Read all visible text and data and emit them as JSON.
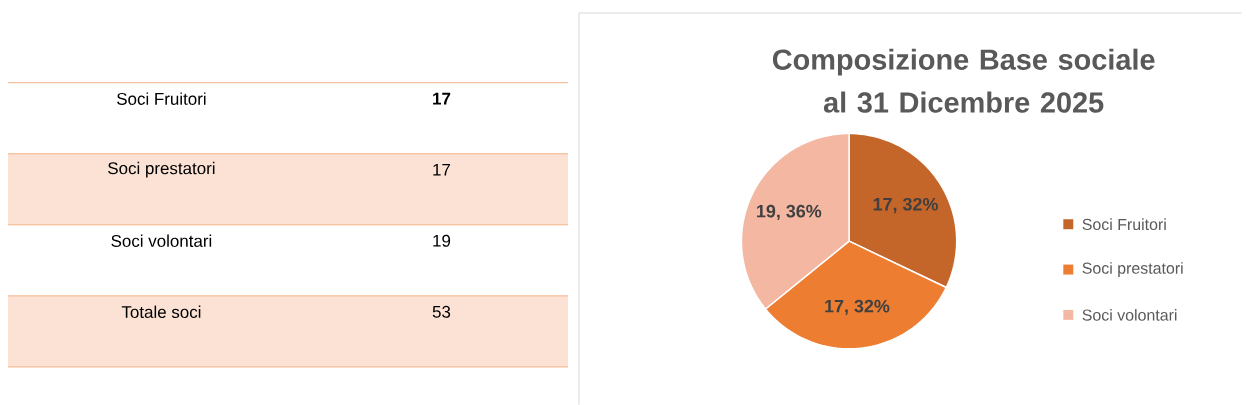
{
  "chart_data": {
    "type": "pie",
    "title": "Composizione Base sociale al 31 Dicembre 2025",
    "categories": [
      "Soci Fruitori",
      "Soci prestatori",
      "Soci volontari"
    ],
    "values": [
      17,
      17,
      19
    ],
    "colors": [
      "#c4652a",
      "#ed7d31",
      "#f4b8a2"
    ],
    "value_labels": [
      "17, 32%",
      "17, 32%",
      "19, 36%"
    ],
    "legend": "right",
    "annotations": [
      "17",
      "17",
      "19",
      "Totale soci",
      "53"
    ]
  }
}
